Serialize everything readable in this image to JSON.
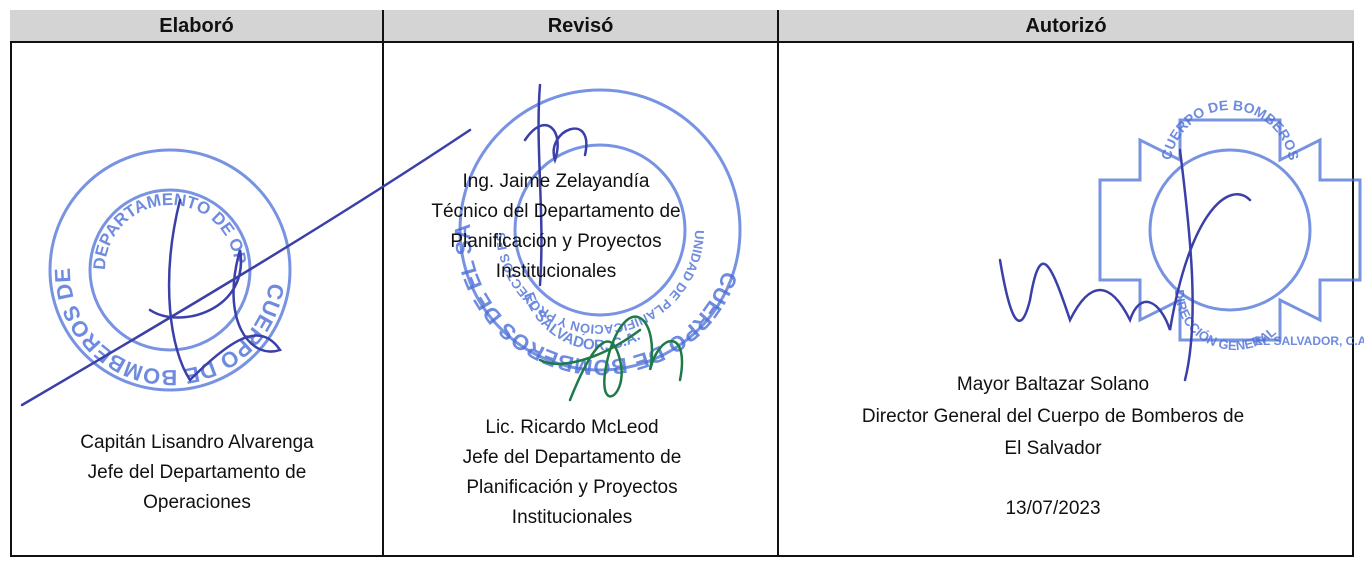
{
  "table": {
    "header": [
      "Elaboró",
      "Revisó",
      "Autorizó"
    ],
    "elaboro": {
      "lines": [
        "Capitán Lisandro Alvarenga",
        "Jefe del Departamento de",
        "Operaciones"
      ]
    },
    "reviso": {
      "first": [
        "Ing. Jaime Zelayandía",
        "Técnico del Departamento de",
        "Planificación y Proyectos",
        "Institucionales"
      ],
      "second": [
        "Lic. Ricardo McLeod",
        "Jefe del Departamento de",
        "Planificación y Proyectos",
        "Institucionales"
      ]
    },
    "autorizo": {
      "lines": [
        "Mayor Baltazar Solano",
        "Director General del Cuerpo de Bomberos de",
        "El Salvador"
      ],
      "date": "13/07/2023"
    }
  },
  "stamps": {
    "operaciones": {
      "outer": "CUERPO DE BOMBEROS DE EL SALVADOR",
      "inner": "DEPARTAMENTO DE OPERACIONES"
    },
    "planificacion": {
      "outer": "CUERPO DE BOMBEROS DE EL SALVADOR",
      "inner": "UNIDAD DE PLANIFICACIÓN Y PROYECTOS ESTRATÉGICOS",
      "bottom": "EL SALVADOR, C.A."
    },
    "direccion": {
      "top": "CUERPO DE BOMBEROS",
      "middle": "DIRECCIÓN GENERAL",
      "bottom": "EL SALVADOR, C.A."
    }
  }
}
